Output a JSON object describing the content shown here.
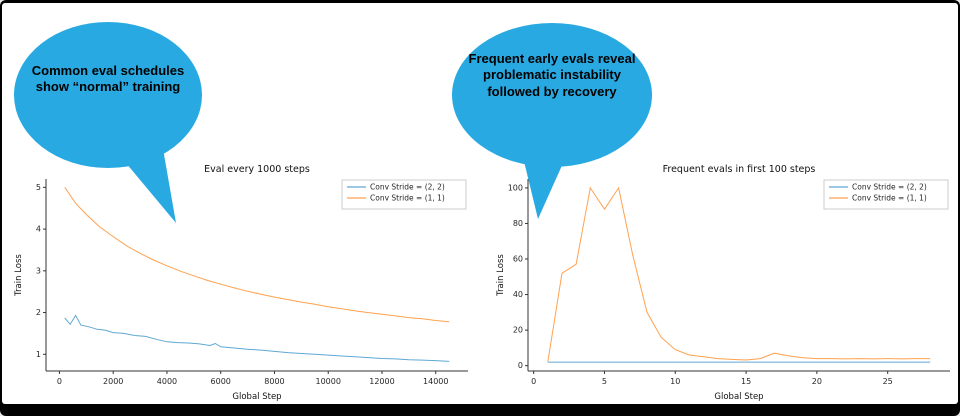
{
  "slide": {
    "bubble_color": "#29a9e1",
    "bubbles": [
      {
        "text": "Common eval schedules show “normal” training"
      },
      {
        "text": "Frequent early evals reveal problematic instability followed by recovery"
      }
    ]
  },
  "chart_data": [
    {
      "type": "line",
      "title": "Eval every 1000 steps",
      "xlabel": "Global Step",
      "ylabel": "Train Loss",
      "xlim": [
        -500,
        15200
      ],
      "ylim": [
        0.6,
        5.2
      ],
      "xticks": [
        0,
        2000,
        4000,
        6000,
        8000,
        10000,
        12000,
        14000
      ],
      "yticks": [
        1,
        2,
        3,
        4,
        5
      ],
      "legend_position": "upper right",
      "series": [
        {
          "name": "Conv Stride =  (2, 2)",
          "color": "#5fa8d3",
          "x": [
            200,
            400,
            600,
            800,
            1100,
            1400,
            1700,
            2000,
            2400,
            2800,
            3200,
            3600,
            4000,
            4400,
            4800,
            5200,
            5600,
            5800,
            6000,
            6500,
            7000,
            7500,
            8000,
            8500,
            9000,
            9500,
            10000,
            10500,
            11000,
            11500,
            12000,
            12500,
            13000,
            13500,
            14000,
            14500
          ],
          "y": [
            1.87,
            1.72,
            1.93,
            1.7,
            1.66,
            1.6,
            1.58,
            1.52,
            1.5,
            1.45,
            1.43,
            1.36,
            1.3,
            1.28,
            1.27,
            1.25,
            1.21,
            1.26,
            1.18,
            1.15,
            1.12,
            1.1,
            1.07,
            1.04,
            1.02,
            1.0,
            0.98,
            0.96,
            0.94,
            0.92,
            0.9,
            0.89,
            0.87,
            0.86,
            0.85,
            0.83
          ]
        },
        {
          "name": "Conv Stride =  (1, 1)",
          "color": "#ffa14f",
          "x": [
            200,
            600,
            1000,
            1500,
            2000,
            2500,
            3000,
            3500,
            4000,
            4500,
            5000,
            5500,
            6000,
            6500,
            7000,
            7500,
            8000,
            8500,
            9000,
            9500,
            10000,
            10500,
            11000,
            11500,
            12000,
            12500,
            13000,
            13500,
            14000,
            14500
          ],
          "y": [
            5.0,
            4.62,
            4.35,
            4.05,
            3.82,
            3.6,
            3.42,
            3.26,
            3.12,
            2.99,
            2.88,
            2.77,
            2.68,
            2.59,
            2.51,
            2.44,
            2.37,
            2.31,
            2.25,
            2.2,
            2.14,
            2.09,
            2.04,
            2.0,
            1.96,
            1.92,
            1.88,
            1.85,
            1.81,
            1.78
          ]
        }
      ]
    },
    {
      "type": "line",
      "title": "Frequent evals in first 100 steps",
      "xlabel": "Global Step",
      "ylabel": "Train Loss",
      "xlim": [
        -0.4,
        29.4
      ],
      "ylim": [
        -3,
        105
      ],
      "xticks": [
        0,
        5,
        10,
        15,
        20,
        25
      ],
      "yticks": [
        0,
        20,
        40,
        60,
        80,
        100
      ],
      "legend_position": "upper right",
      "series": [
        {
          "name": "Conv Stride =  (2, 2)",
          "color": "#5fa8d3",
          "x": [
            1,
            4,
            8,
            12,
            16,
            20,
            24,
            28
          ],
          "y": [
            2,
            2,
            2,
            2,
            2,
            2,
            2,
            2
          ]
        },
        {
          "name": "Conv Stride =  (1, 1)",
          "color": "#ffa14f",
          "x": [
            1,
            2,
            3,
            4,
            5,
            6,
            7,
            8,
            9,
            10,
            11,
            12,
            13,
            14,
            15,
            16,
            17,
            18,
            19,
            20,
            21,
            22,
            23,
            24,
            25,
            26,
            27,
            28
          ],
          "y": [
            2,
            52,
            57,
            100,
            88,
            100,
            62,
            30,
            16,
            9,
            6,
            5,
            4,
            3.5,
            3.2,
            4,
            7,
            5.5,
            4.5,
            4,
            4,
            3.8,
            4,
            3.8,
            4,
            3.8,
            4,
            4
          ]
        }
      ]
    }
  ]
}
